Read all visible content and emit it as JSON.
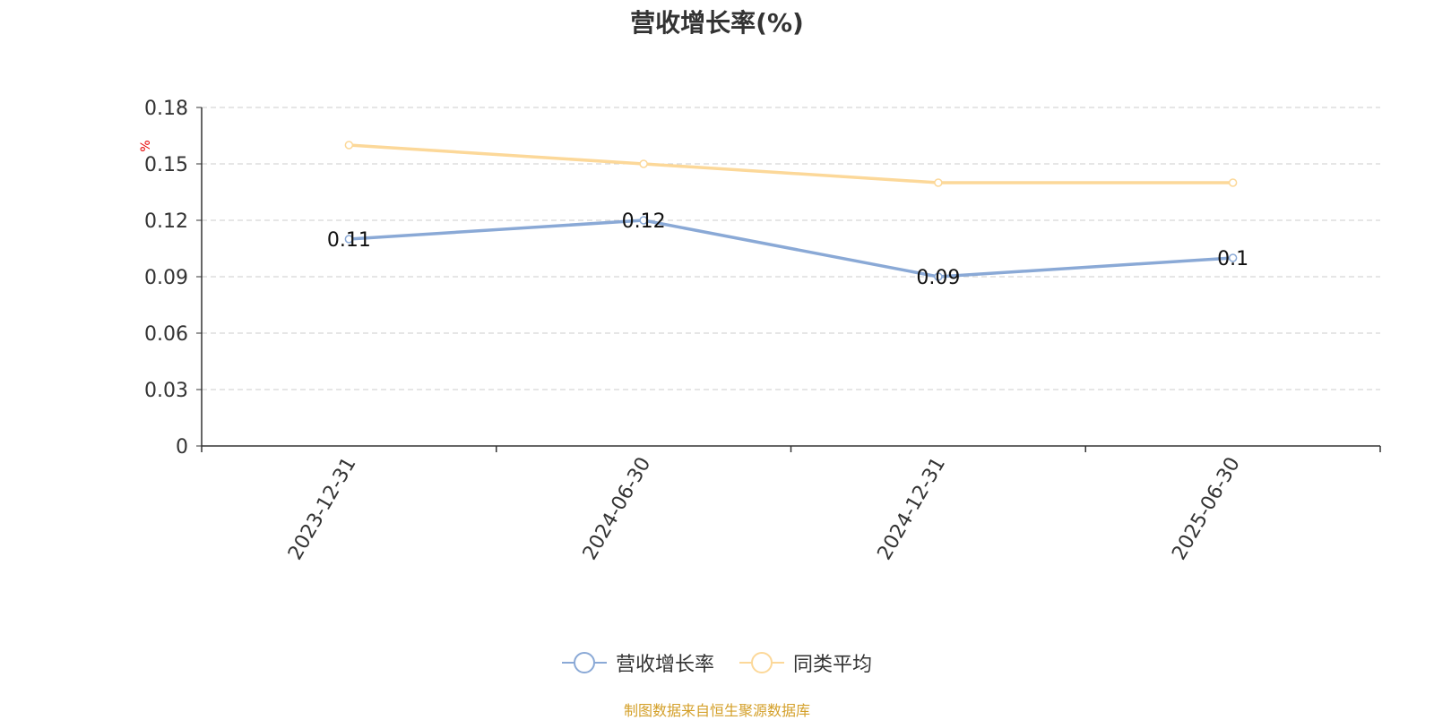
{
  "title": "营收增长率(%)",
  "footer": "制图数据来自恒生聚源数据库",
  "colors": {
    "series1": "#8aa9d6",
    "series2": "#fcd899",
    "grid": "#cccccc",
    "axis": "#333333",
    "unit": "#e60000"
  },
  "chart_data": {
    "type": "line",
    "title": "营收增长率(%)",
    "ylabel": "%",
    "xlabel": "",
    "categories": [
      "2023-12-31",
      "2024-06-30",
      "2024-12-31",
      "2025-06-30"
    ],
    "ylim": [
      0,
      0.18
    ],
    "yticks": [
      "0",
      "0.03",
      "0.06",
      "0.09",
      "0.12",
      "0.15",
      "0.18"
    ],
    "grid": true,
    "legend_position": "bottom",
    "series": [
      {
        "name": "营收增长率",
        "values": [
          0.11,
          0.12,
          0.09,
          0.1
        ],
        "labels": [
          "0.11",
          "0.12",
          "0.09",
          "0.1"
        ],
        "color": "#8aa9d6"
      },
      {
        "name": "同类平均",
        "values": [
          0.16,
          0.15,
          0.14,
          0.14
        ],
        "color": "#fcd899"
      }
    ]
  }
}
